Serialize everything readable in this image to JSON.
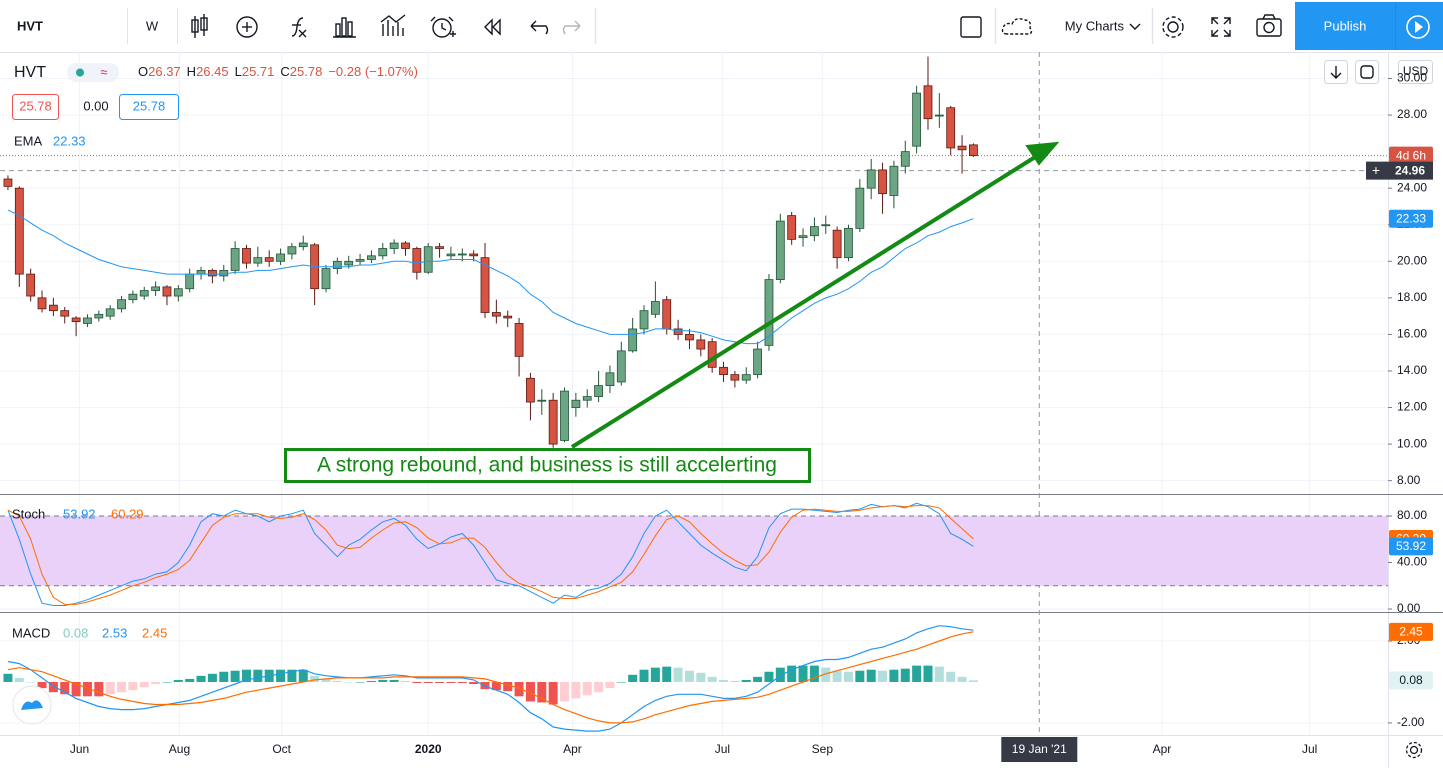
{
  "ui": {
    "toolbar": {
      "symbol": "HVT",
      "interval": "W",
      "my_charts": "My Charts",
      "publish": "Publish"
    },
    "currency": "USD",
    "legend": {
      "symbol": "HVT",
      "items": [
        {
          "key": "O",
          "value": "26.37"
        },
        {
          "key": "H",
          "value": "26.45"
        },
        {
          "key": "L",
          "value": "25.71"
        },
        {
          "key": "C",
          "value": "25.78"
        }
      ],
      "change": "−0.28 (−1.07%)"
    },
    "quote": [
      "25.78",
      "0.00",
      "25.78"
    ],
    "annotation": "A strong rebound, and business is still accelerting"
  },
  "chart_data": [
    {
      "type": "candlestick",
      "grid": true,
      "colors": {
        "up": "#6ba583",
        "down": "#d75442",
        "up_border": "#225437",
        "down_border": "#5b1a13"
      },
      "x": [
        0,
        1,
        2,
        3,
        4,
        5,
        6,
        7,
        8,
        9,
        10,
        11,
        12,
        13,
        14,
        15,
        16,
        17,
        18,
        19,
        20,
        21,
        22,
        23,
        24,
        25,
        26,
        27,
        28,
        29,
        30,
        31,
        32,
        33,
        34,
        35,
        36,
        37,
        38,
        39,
        40,
        41,
        42,
        43,
        44,
        45,
        46,
        47,
        48,
        49,
        50,
        51,
        52,
        53,
        54,
        55,
        56,
        57,
        58,
        59,
        60,
        61,
        62,
        63,
        64,
        65,
        66,
        67,
        68,
        69,
        70,
        71,
        72,
        73,
        74,
        75,
        76,
        77,
        78,
        79,
        80,
        81,
        82,
        83,
        84,
        85
      ],
      "open": [
        24.5,
        24.0,
        19.3,
        18.0,
        17.6,
        17.3,
        16.9,
        16.6,
        16.9,
        17.0,
        17.4,
        17.9,
        18.1,
        18.4,
        18.6,
        18.1,
        18.5,
        19.3,
        19.5,
        19.2,
        19.5,
        20.7,
        19.9,
        20.2,
        20.0,
        20.4,
        20.8,
        20.9,
        18.5,
        19.6,
        19.8,
        20.0,
        20.1,
        20.3,
        20.7,
        21.0,
        20.7,
        19.4,
        20.8,
        20.3,
        20.4,
        20.4,
        20.2,
        17.2,
        17.0,
        16.6,
        13.6,
        12.4,
        12.4,
        10.2,
        12.0,
        12.4,
        12.6,
        13.2,
        13.4,
        15.1,
        16.3,
        17.1,
        17.9,
        16.3,
        16.0,
        15.7,
        15.6,
        14.2,
        13.8,
        13.5,
        13.8,
        15.4,
        19.0,
        22.5,
        21.3,
        21.4,
        22.0,
        21.7,
        20.2,
        21.8,
        24.0,
        25.0,
        23.6,
        25.2,
        26.3,
        29.6,
        28.0,
        28.4,
        26.3,
        26.37
      ],
      "high": [
        24.7,
        24.1,
        19.6,
        18.4,
        18.0,
        17.5,
        17.0,
        17.1,
        17.3,
        17.6,
        18.1,
        18.4,
        18.6,
        18.9,
        18.7,
        18.7,
        19.6,
        19.7,
        19.6,
        19.8,
        21.1,
        20.9,
        20.8,
        20.6,
        20.7,
        21.0,
        21.4,
        21.0,
        19.8,
        20.2,
        20.3,
        20.4,
        20.6,
        21.0,
        21.2,
        21.1,
        20.8,
        21.0,
        21.0,
        20.8,
        20.7,
        20.6,
        21.0,
        17.9,
        17.3,
        16.9,
        13.9,
        13.0,
        12.8,
        13.1,
        12.8,
        13.0,
        14.0,
        14.3,
        15.6,
        16.9,
        17.6,
        18.9,
        18.1,
        16.8,
        16.3,
        16.0,
        15.8,
        14.5,
        14.0,
        14.2,
        15.6,
        19.3,
        22.6,
        22.7,
        21.8,
        22.4,
        22.5,
        21.9,
        22.0,
        24.5,
        25.6,
        25.4,
        25.5,
        26.6,
        29.6,
        31.2,
        29.2,
        28.5,
        26.9,
        26.45
      ],
      "low": [
        23.9,
        18.6,
        17.8,
        17.2,
        17.0,
        16.6,
        15.9,
        16.4,
        16.7,
        16.8,
        17.2,
        17.7,
        17.9,
        18.1,
        17.6,
        17.8,
        18.3,
        19.0,
        18.8,
        18.9,
        19.3,
        19.6,
        19.7,
        19.7,
        19.8,
        20.1,
        20.6,
        17.6,
        18.3,
        19.3,
        19.6,
        19.8,
        19.9,
        20.1,
        20.4,
        20.3,
        19.0,
        19.3,
        20.2,
        20.1,
        20.0,
        20.0,
        16.9,
        16.6,
        16.4,
        13.7,
        11.3,
        11.6,
        9.8,
        10.1,
        11.5,
        12.0,
        12.3,
        12.8,
        13.2,
        15.0,
        16.0,
        16.9,
        16.0,
        15.7,
        15.2,
        14.8,
        13.9,
        13.4,
        13.1,
        13.3,
        13.6,
        15.1,
        18.8,
        20.9,
        20.8,
        21.1,
        21.5,
        19.6,
        20.0,
        21.6,
        23.4,
        22.6,
        22.9,
        24.8,
        25.9,
        27.2,
        27.3,
        25.8,
        24.8,
        25.71
      ],
      "close": [
        24.1,
        19.3,
        18.1,
        17.4,
        17.3,
        17.0,
        16.7,
        16.9,
        17.1,
        17.4,
        17.9,
        18.2,
        18.4,
        18.6,
        18.1,
        18.5,
        19.3,
        19.5,
        19.2,
        19.5,
        20.7,
        19.9,
        20.2,
        20.0,
        20.4,
        20.8,
        21.0,
        18.5,
        19.6,
        20.0,
        20.0,
        20.1,
        20.3,
        20.7,
        21.0,
        20.7,
        19.4,
        20.8,
        20.7,
        20.4,
        20.4,
        20.3,
        17.2,
        17.0,
        16.9,
        14.8,
        12.3,
        12.4,
        10.0,
        12.9,
        12.4,
        12.6,
        13.2,
        13.9,
        15.1,
        16.3,
        17.3,
        17.8,
        16.3,
        16.0,
        15.7,
        15.2,
        14.2,
        13.8,
        13.5,
        13.8,
        15.2,
        19.0,
        22.2,
        21.2,
        21.4,
        21.9,
        22.0,
        20.2,
        21.8,
        24.0,
        25.0,
        23.7,
        25.2,
        26.0,
        29.2,
        27.8,
        28.0,
        26.2,
        26.1,
        25.78
      ],
      "series": [
        {
          "name": "EMA",
          "color": "#2196f3",
          "values": [
            22.8,
            22.5,
            22.1,
            21.7,
            21.4,
            21.0,
            20.7,
            20.4,
            20.1,
            19.9,
            19.7,
            19.6,
            19.5,
            19.4,
            19.3,
            19.3,
            19.3,
            19.3,
            19.3,
            19.3,
            19.4,
            19.4,
            19.5,
            19.5,
            19.6,
            19.7,
            19.8,
            19.7,
            19.7,
            19.7,
            19.7,
            19.8,
            19.8,
            19.9,
            20.0,
            20.0,
            19.9,
            20.0,
            20.0,
            20.1,
            20.1,
            20.1,
            19.8,
            19.5,
            19.2,
            18.8,
            18.2,
            17.8,
            17.2,
            16.9,
            16.6,
            16.4,
            16.2,
            16.0,
            16.0,
            16.0,
            16.1,
            16.3,
            16.3,
            16.2,
            16.2,
            16.1,
            15.9,
            15.7,
            15.6,
            15.5,
            15.5,
            15.9,
            16.4,
            16.9,
            17.3,
            17.7,
            18.0,
            18.2,
            18.5,
            18.9,
            19.4,
            19.7,
            20.2,
            20.7,
            21.0,
            21.4,
            21.6,
            21.9,
            22.1,
            22.33
          ]
        }
      ],
      "countdown": "4d 6h",
      "crosshair": {
        "x": 90.8,
        "x_label": "19 Jan '21",
        "y": 24.96
      },
      "xlim": [
        -0.7,
        121.5
      ],
      "xticks": [
        {
          "value": 6.3,
          "label": "Jun"
        },
        {
          "value": 15.1,
          "label": "Aug"
        },
        {
          "value": 24.1,
          "label": "Oct"
        },
        {
          "value": 37.0,
          "label": "2020"
        },
        {
          "value": 49.7,
          "label": "Apr"
        },
        {
          "value": 62.9,
          "label": "Jul"
        },
        {
          "value": 71.7,
          "label": "Sep"
        },
        {
          "value": 101.6,
          "label": "Apr"
        },
        {
          "value": 114.6,
          "label": "Jul"
        }
      ],
      "ylim": [
        7.27,
        31.45
      ],
      "yticks": [
        {
          "value": 8,
          "label": "8.00"
        },
        {
          "value": 10,
          "label": "10.00"
        },
        {
          "value": 12,
          "label": "12.00"
        },
        {
          "value": 14,
          "label": "14.00"
        },
        {
          "value": 16,
          "label": "16.00"
        },
        {
          "value": 18,
          "label": "18.00"
        },
        {
          "value": 20,
          "label": "20.00"
        },
        {
          "value": 22,
          "label": "22.00"
        },
        {
          "value": 24,
          "label": "24.00"
        },
        {
          "value": 28,
          "label": "28.00"
        },
        {
          "value": 30,
          "label": "30.00"
        }
      ]
    },
    {
      "type": "stoch",
      "title": "Stoch",
      "grid": true,
      "band": [
        20,
        80
      ],
      "band_color": "#ead1fa",
      "series": [
        {
          "color": "#2196f3",
          "values": [
            85,
            60,
            30,
            5,
            3,
            3,
            5,
            8,
            12,
            16,
            20,
            24,
            26,
            30,
            32,
            40,
            55,
            75,
            82,
            80,
            85,
            82,
            80,
            75,
            80,
            82,
            85,
            65,
            55,
            45,
            55,
            60,
            68,
            75,
            78,
            72,
            60,
            52,
            56,
            62,
            65,
            55,
            40,
            25,
            22,
            20,
            15,
            10,
            5,
            12,
            10,
            16,
            18,
            22,
            30,
            45,
            65,
            80,
            85,
            75,
            65,
            55,
            48,
            42,
            36,
            33,
            45,
            70,
            82,
            86,
            86,
            85,
            84,
            83,
            85,
            86,
            90,
            88,
            89,
            87,
            91,
            88,
            82,
            65,
            60,
            53.92
          ]
        },
        {
          "color": "#ff6d00",
          "values": [
            85,
            80,
            60,
            30,
            10,
            4,
            4,
            6,
            9,
            12,
            16,
            20,
            23,
            27,
            30,
            34,
            42,
            57,
            72,
            79,
            82,
            82,
            82,
            79,
            78,
            79,
            82,
            77,
            68,
            55,
            52,
            53,
            61,
            68,
            74,
            75,
            70,
            61,
            56,
            57,
            61,
            61,
            53,
            40,
            29,
            22,
            19,
            15,
            10,
            9,
            9,
            12,
            15,
            19,
            23,
            32,
            47,
            63,
            77,
            80,
            75,
            65,
            56,
            48,
            42,
            37,
            38,
            49,
            66,
            79,
            85,
            86,
            85,
            84,
            84,
            85,
            87,
            88,
            89,
            88,
            89,
            89,
            87,
            78,
            69,
            60.29
          ]
        }
      ],
      "ylim": [
        -2.58,
        98.1
      ],
      "yticks": [
        {
          "value": 0,
          "label": "0.00"
        },
        {
          "value": 40,
          "label": "40.00"
        },
        {
          "value": 80,
          "label": "80.00"
        }
      ]
    },
    {
      "type": "macd",
      "title": "MACD",
      "grid": true,
      "histogram": {
        "colors": {
          "up_rising": "#26a69a",
          "up_falling": "#b2dfdb",
          "down_falling": "#ef5350",
          "down_rising": "#ffcdd2"
        },
        "values": [
          0.4,
          0.2,
          0.0,
          -0.3,
          -0.5,
          -0.6,
          -0.7,
          -0.7,
          -0.7,
          -0.6,
          -0.5,
          -0.4,
          -0.25,
          -0.1,
          0.0,
          0.1,
          0.15,
          0.3,
          0.4,
          0.5,
          0.55,
          0.6,
          0.6,
          0.6,
          0.6,
          0.6,
          0.6,
          0.3,
          0.15,
          0.05,
          0.0,
          0.0,
          0.05,
          0.1,
          0.1,
          0.05,
          -0.05,
          -0.05,
          -0.05,
          -0.05,
          -0.05,
          -0.1,
          -0.35,
          -0.4,
          -0.45,
          -0.7,
          -0.95,
          -1.0,
          -1.1,
          -0.95,
          -0.8,
          -0.65,
          -0.5,
          -0.3,
          0.0,
          0.35,
          0.6,
          0.7,
          0.75,
          0.7,
          0.55,
          0.45,
          0.25,
          0.1,
          0.05,
          0.1,
          0.25,
          0.5,
          0.7,
          0.8,
          0.8,
          0.8,
          0.7,
          0.55,
          0.5,
          0.55,
          0.6,
          0.55,
          0.6,
          0.65,
          0.8,
          0.8,
          0.75,
          0.5,
          0.25,
          0.08
        ]
      },
      "series": [
        {
          "color": "#2196f3",
          "values": [
            1.0,
            0.9,
            0.6,
            0.2,
            -0.2,
            -0.5,
            -0.8,
            -1.0,
            -1.2,
            -1.3,
            -1.35,
            -1.35,
            -1.3,
            -1.2,
            -1.1,
            -1.0,
            -0.9,
            -0.7,
            -0.5,
            -0.3,
            -0.1,
            0.1,
            0.2,
            0.3,
            0.4,
            0.5,
            0.6,
            0.4,
            0.3,
            0.25,
            0.2,
            0.2,
            0.25,
            0.3,
            0.35,
            0.3,
            0.2,
            0.2,
            0.2,
            0.2,
            0.2,
            0.1,
            -0.2,
            -0.4,
            -0.6,
            -1.0,
            -1.5,
            -1.8,
            -2.2,
            -2.3,
            -2.35,
            -2.4,
            -2.4,
            -2.3,
            -2.0,
            -1.6,
            -1.2,
            -0.9,
            -0.7,
            -0.6,
            -0.6,
            -0.6,
            -0.7,
            -0.8,
            -0.8,
            -0.7,
            -0.5,
            -0.1,
            0.3,
            0.6,
            0.8,
            1.0,
            1.1,
            1.1,
            1.2,
            1.4,
            1.6,
            1.7,
            1.9,
            2.1,
            2.4,
            2.6,
            2.75,
            2.7,
            2.6,
            2.53
          ]
        },
        {
          "color": "#ff6d00",
          "values": [
            0.6,
            0.7,
            0.6,
            0.5,
            0.3,
            0.1,
            -0.1,
            -0.3,
            -0.5,
            -0.7,
            -0.85,
            -0.95,
            -1.05,
            -1.1,
            -1.1,
            -1.1,
            -1.05,
            -1.0,
            -0.9,
            -0.8,
            -0.65,
            -0.5,
            -0.4,
            -0.3,
            -0.2,
            -0.1,
            0.0,
            0.1,
            0.15,
            0.2,
            0.2,
            0.2,
            0.2,
            0.2,
            0.25,
            0.25,
            0.25,
            0.25,
            0.25,
            0.25,
            0.25,
            0.2,
            0.15,
            0.0,
            -0.15,
            -0.3,
            -0.55,
            -0.8,
            -1.1,
            -1.35,
            -1.55,
            -1.75,
            -1.9,
            -2.0,
            -2.0,
            -1.95,
            -1.8,
            -1.6,
            -1.45,
            -1.3,
            -1.15,
            -1.05,
            -0.95,
            -0.9,
            -0.85,
            -0.8,
            -0.75,
            -0.6,
            -0.4,
            -0.2,
            0.0,
            0.2,
            0.4,
            0.55,
            0.7,
            0.85,
            1.0,
            1.15,
            1.3,
            1.45,
            1.6,
            1.8,
            2.0,
            2.2,
            2.35,
            2.45
          ]
        }
      ],
      "ylim": [
        -2.59,
        3.37
      ],
      "yticks": [
        {
          "value": -2,
          "label": "-2.00"
        },
        {
          "value": 2,
          "label": "2.00"
        }
      ]
    }
  ]
}
